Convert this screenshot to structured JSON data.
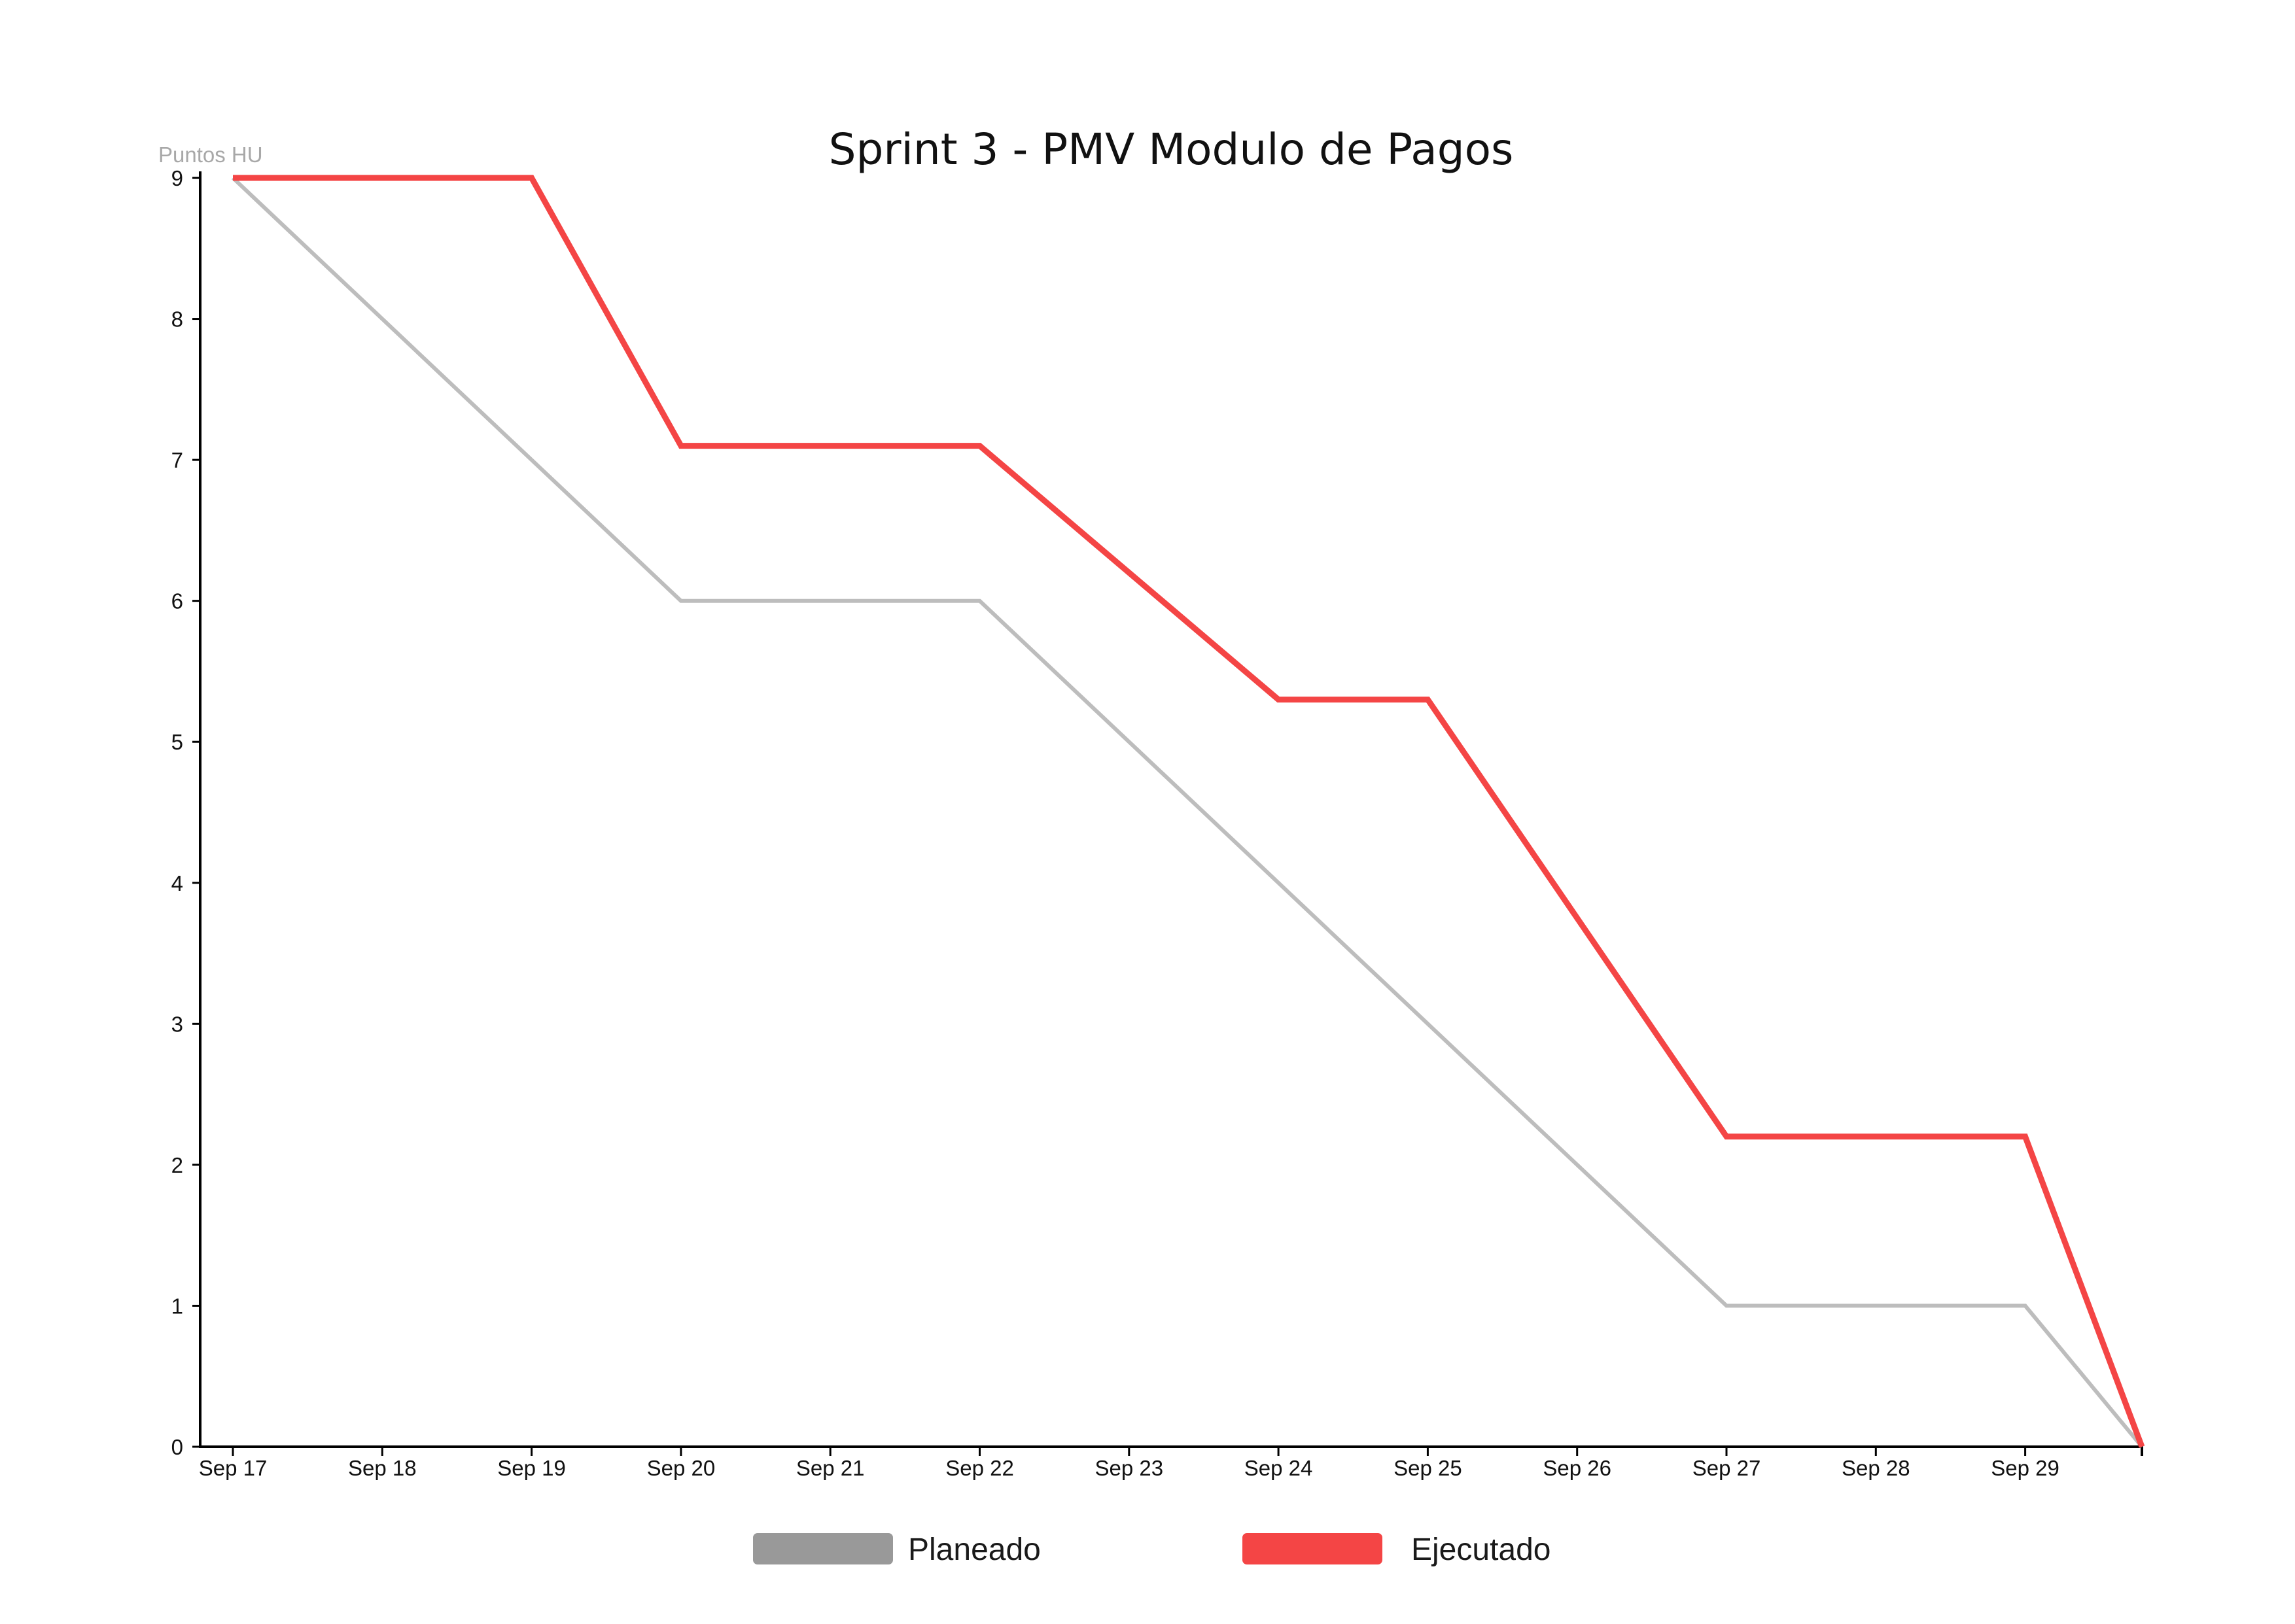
{
  "chart_data": {
    "type": "line",
    "title": "Sprint 3 - PMV Modulo de Pagos",
    "ylabel": "Puntos HU",
    "xlabel": "",
    "categories": [
      "Sep 17",
      "Sep 18",
      "Sep 19",
      "Sep 20",
      "Sep 21",
      "Sep 22",
      "Sep 23",
      "Sep 24",
      "Sep 25",
      "Sep 26",
      "Sep 27",
      "Sep 28",
      "Sep 29"
    ],
    "ylim": [
      0,
      9
    ],
    "yticks": [
      0,
      1,
      2,
      3,
      4,
      5,
      6,
      7,
      8,
      9
    ],
    "grid": false,
    "legend_position": "bottom",
    "series": [
      {
        "name": "Planeado",
        "color": "#bdbdbd",
        "legend_color": "#999999",
        "points": [
          {
            "x": "Sep 17",
            "y": 9
          },
          {
            "x": "Sep 20",
            "y": 6
          },
          {
            "x": "Sep 22",
            "y": 6
          },
          {
            "x": "Sep 27",
            "y": 1
          },
          {
            "x": "Sep 29",
            "y": 1
          },
          {
            "x": "Sep 30",
            "y": 0
          }
        ]
      },
      {
        "name": "Ejecutado",
        "color": "#f44545",
        "legend_color": "#f44545",
        "points": [
          {
            "x": "Sep 17",
            "y": 9
          },
          {
            "x": "Sep 19",
            "y": 9
          },
          {
            "x": "Sep 20",
            "y": 7.1
          },
          {
            "x": "Sep 22",
            "y": 7.1
          },
          {
            "x": "Sep 24",
            "y": 5.3
          },
          {
            "x": "Sep 25",
            "y": 5.3
          },
          {
            "x": "Sep 27",
            "y": 2.2
          },
          {
            "x": "Sep 29",
            "y": 2.2
          },
          {
            "x": "Sep 30",
            "y": 0
          }
        ]
      }
    ]
  }
}
